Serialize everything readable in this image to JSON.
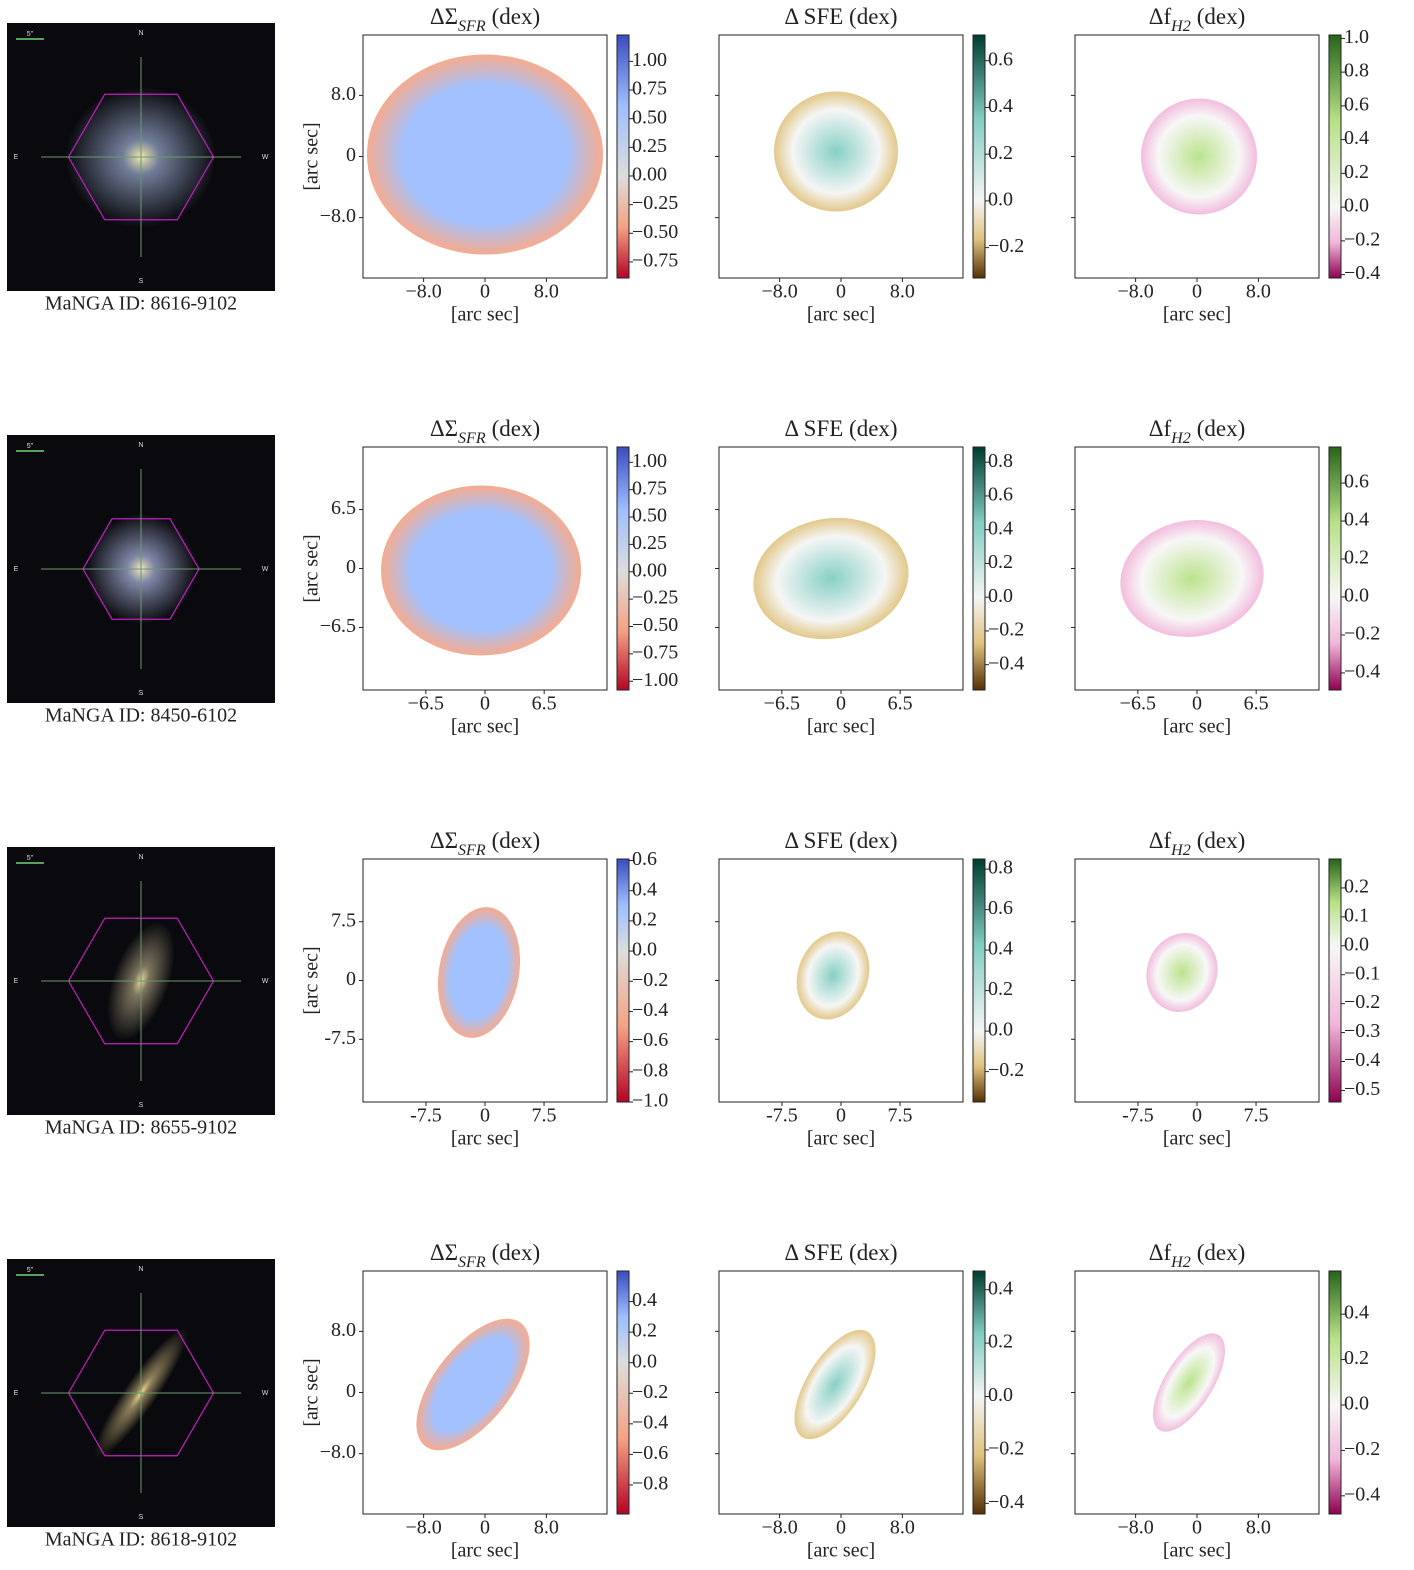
{
  "image_labels": {
    "north": "N",
    "east": "E",
    "west": "W",
    "south": "S",
    "scale": "5\""
  },
  "rows": [
    {
      "caption": "MaNGA ID: 8616-9102",
      "axes": {
        "xlabel": "[arc sec]",
        "ylabel": "[arc sec]",
        "lim": [
          -15.9,
          15.9
        ],
        "ticks": [
          {
            "value": -8,
            "label": "−8.0"
          },
          0,
          {
            "value": 8,
            "label": "8.0"
          }
        ]
      },
      "panels": [
        {
          "title": {
            "text": "ΔΣ",
            "sub": "SFR",
            "suffix": "(dex)"
          },
          "colorbar": {
            "lim": [
              -0.89,
              1.23
            ],
            "ticks": [
              {
                "value": 1,
                "label": "1.00"
              },
              0.75,
              {
                "value": 0.5,
                "label": "0.50"
              },
              0.25,
              {
                "value": 0,
                "label": "0.00"
              },
              {
                "value": -0.25,
                "label": "−0.25"
              },
              {
                "value": -0.5,
                "label": "−0.50"
              },
              {
                "value": -0.75,
                "label": "−0.75"
              }
            ],
            "colors": [
              "#b40426",
              "#f4a283",
              "#dddddd",
              "#9ebefe",
              "#3b4cc0"
            ]
          }
        },
        {
          "title": {
            "text": "Δ SFE (dex)"
          },
          "colorbar": {
            "lim": [
              -0.33,
              0.71
            ],
            "ticks": [
              0.6,
              0.4,
              0.2,
              {
                "value": 0,
                "label": "0.0"
              },
              {
                "value": -0.2,
                "label": "−0.2"
              }
            ],
            "colors": [
              "#543005",
              "#dfc27d",
              "#f5f5f5",
              "#80cdc1",
              "#003c30"
            ]
          }
        },
        {
          "title": {
            "text": "Δf",
            "sub": "H2",
            "suffix": "(dex)"
          },
          "colorbar": {
            "lim": [
              -0.42,
              1.02
            ],
            "ticks": [
              {
                "value": 1,
                "label": "1.0"
              },
              0.8,
              0.6,
              0.4,
              0.2,
              {
                "value": 0,
                "label": "0.0"
              },
              {
                "value": -0.2,
                "label": "−0.2"
              },
              {
                "value": -0.4,
                "label": "−0.4"
              }
            ],
            "colors": [
              "#8e0152",
              "#f1b6da",
              "#f7f7f7",
              "#b8e186",
              "#276419"
            ]
          }
        }
      ]
    },
    {
      "caption": "MaNGA ID: 8450-6102",
      "axes": {
        "xlabel": "[arc sec]",
        "ylabel": "[arc sec]",
        "lim": [
          -13.4,
          13.4
        ],
        "ticks": [
          {
            "value": -6.5,
            "label": "−6.5"
          },
          0,
          6.5
        ]
      },
      "panels": [
        {
          "title": {
            "text": "ΔΣ",
            "sub": "SFR",
            "suffix": "(dex)"
          },
          "colorbar": {
            "lim": [
              -1.08,
              1.14
            ],
            "ticks": [
              {
                "value": 1,
                "label": "1.00"
              },
              0.75,
              {
                "value": 0.5,
                "label": "0.50"
              },
              0.25,
              {
                "value": 0,
                "label": "0.00"
              },
              {
                "value": -0.25,
                "label": "−0.25"
              },
              {
                "value": -0.5,
                "label": "−0.50"
              },
              {
                "value": -0.75,
                "label": "−0.75"
              },
              {
                "value": -1,
                "label": "−1.00"
              }
            ],
            "colors": [
              "#b40426",
              "#f4a283",
              "#dddddd",
              "#9ebefe",
              "#3b4cc0"
            ]
          }
        },
        {
          "title": {
            "text": "Δ SFE (dex)"
          },
          "colorbar": {
            "lim": [
              -0.55,
              0.89
            ],
            "ticks": [
              0.8,
              0.6,
              0.4,
              0.2,
              {
                "value": 0,
                "label": "0.0"
              },
              {
                "value": -0.2,
                "label": "−0.2"
              },
              {
                "value": -0.4,
                "label": "−0.4"
              }
            ],
            "colors": [
              "#543005",
              "#dfc27d",
              "#f5f5f5",
              "#80cdc1",
              "#003c30"
            ]
          }
        },
        {
          "title": {
            "text": "Δf",
            "sub": "H2",
            "suffix": "(dex)"
          },
          "colorbar": {
            "lim": [
              -0.49,
              0.79
            ],
            "ticks": [
              0.6,
              0.4,
              0.2,
              {
                "value": 0,
                "label": "0.0"
              },
              {
                "value": -0.2,
                "label": "−0.2"
              },
              {
                "value": -0.4,
                "label": "−0.4"
              }
            ],
            "colors": [
              "#8e0152",
              "#f1b6da",
              "#f7f7f7",
              "#b8e186",
              "#276419"
            ]
          }
        }
      ]
    },
    {
      "caption": "MaNGA ID: 8655-9102",
      "axes": {
        "xlabel": "[arc sec]",
        "ylabel": "[arc sec]",
        "lim": [
          -15.5,
          15.5
        ],
        "ticks": [
          {
            "value": -7.5,
            "label": "-7.5"
          },
          0,
          7.5
        ]
      },
      "panels": [
        {
          "title": {
            "text": "ΔΣ",
            "sub": "SFR",
            "suffix": "(dex)"
          },
          "colorbar": {
            "lim": [
              -1.0,
              0.61
            ],
            "ticks": [
              0.6,
              0.4,
              0.2,
              {
                "value": 0,
                "label": "0.0"
              },
              {
                "value": -0.2,
                "label": "−0.2"
              },
              {
                "value": -0.4,
                "label": "−0.4"
              },
              {
                "value": -0.6,
                "label": "−0.6"
              },
              {
                "value": -0.8,
                "label": "−0.8"
              },
              {
                "value": -1,
                "label": "−1.0"
              }
            ],
            "colors": [
              "#b40426",
              "#f4a283",
              "#dddddd",
              "#9ebefe",
              "#3b4cc0"
            ]
          }
        },
        {
          "title": {
            "text": "Δ SFE (dex)"
          },
          "colorbar": {
            "lim": [
              -0.35,
              0.85
            ],
            "ticks": [
              0.8,
              0.6,
              0.4,
              0.2,
              {
                "value": 0,
                "label": "0.0"
              },
              {
                "value": -0.2,
                "label": "−0.2"
              }
            ],
            "colors": [
              "#543005",
              "#dfc27d",
              "#f5f5f5",
              "#80cdc1",
              "#003c30"
            ]
          }
        },
        {
          "title": {
            "text": "Δf",
            "sub": "H2",
            "suffix": "(dex)"
          },
          "colorbar": {
            "lim": [
              -0.54,
              0.3
            ],
            "ticks": [
              0.2,
              0.1,
              {
                "value": 0,
                "label": "0.0"
              },
              {
                "value": -0.1,
                "label": "−0.1"
              },
              {
                "value": -0.2,
                "label": "−0.2"
              },
              {
                "value": -0.3,
                "label": "−0.3"
              },
              {
                "value": -0.4,
                "label": "−0.4"
              },
              {
                "value": -0.5,
                "label": "−0.5"
              }
            ],
            "colors": [
              "#8e0152",
              "#f1b6da",
              "#f7f7f7",
              "#b8e186",
              "#276419"
            ]
          }
        }
      ]
    },
    {
      "caption": "MaNGA ID: 8618-9102",
      "axes": {
        "xlabel": "[arc sec]",
        "ylabel": "[arc sec]",
        "lim": [
          -15.9,
          15.9
        ],
        "ticks": [
          {
            "value": -8,
            "label": "−8.0"
          },
          0,
          {
            "value": 8,
            "label": "8.0"
          }
        ]
      },
      "panels": [
        {
          "title": {
            "text": "ΔΣ",
            "sub": "SFR",
            "suffix": "(dex)"
          },
          "colorbar": {
            "lim": [
              -0.99,
              0.6
            ],
            "ticks": [
              0.4,
              0.2,
              {
                "value": 0,
                "label": "0.0"
              },
              {
                "value": -0.2,
                "label": "−0.2"
              },
              {
                "value": -0.4,
                "label": "−0.4"
              },
              {
                "value": -0.6,
                "label": "−0.6"
              },
              {
                "value": -0.8,
                "label": "−0.8"
              }
            ],
            "colors": [
              "#b40426",
              "#f4a283",
              "#dddddd",
              "#9ebefe",
              "#3b4cc0"
            ]
          }
        },
        {
          "title": {
            "text": "Δ SFE (dex)"
          },
          "colorbar": {
            "lim": [
              -0.44,
              0.47
            ],
            "ticks": [
              0.4,
              0.2,
              {
                "value": 0,
                "label": "0.0"
              },
              {
                "value": -0.2,
                "label": "−0.2"
              },
              {
                "value": -0.4,
                "label": "−0.4"
              }
            ],
            "colors": [
              "#543005",
              "#dfc27d",
              "#f5f5f5",
              "#80cdc1",
              "#003c30"
            ]
          }
        },
        {
          "title": {
            "text": "Δf",
            "sub": "H2",
            "suffix": "(dex)"
          },
          "colorbar": {
            "lim": [
              -0.48,
              0.59
            ],
            "ticks": [
              0.4,
              0.2,
              {
                "value": 0,
                "label": "0.0"
              },
              {
                "value": -0.2,
                "label": "−0.2"
              },
              {
                "value": -0.4,
                "label": "−0.4"
              }
            ],
            "colors": [
              "#8e0152",
              "#f1b6da",
              "#f7f7f7",
              "#b8e186",
              "#276419"
            ]
          }
        }
      ]
    }
  ]
}
